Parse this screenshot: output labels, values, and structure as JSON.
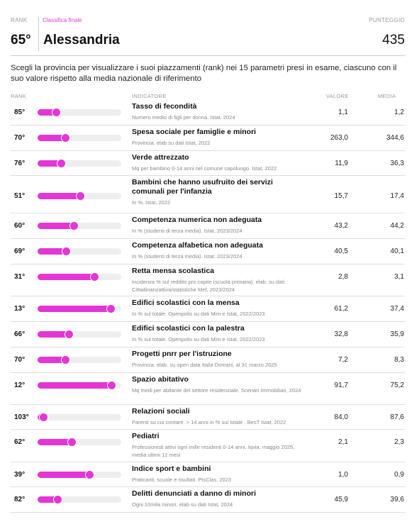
{
  "header": {
    "rank_label": "RANK",
    "section_label": "Classifica finale",
    "score_label": "PUNTEGGIO",
    "rank": "65°",
    "province": "Alessandria",
    "score": "435"
  },
  "intro": "Scegli la provincia per visualizzare i suoi piazzamenti (rank) nei 15 parametri presi in esame, ciascuno con il suo valore rispetto alla media nazionale di riferimento",
  "columns": {
    "rank": "RANK",
    "indicator": "INDICATORE",
    "value": "VALORE",
    "average": "MEDIA"
  },
  "accent_color": "#e535d4",
  "rows": [
    {
      "rank": "85°",
      "level": 0.22,
      "title": "Tasso di fecondità",
      "source": "Numero medio di figli per donna. Istat, 2024",
      "value": "1,1",
      "average": "1,2"
    },
    {
      "rank": "70°",
      "level": 0.33,
      "title": "Spesa sociale per famiglie e minori",
      "source": "Provincia. elab su dati Istat, 2022",
      "value": "263,0",
      "average": "344,6"
    },
    {
      "rank": "76°",
      "level": 0.28,
      "title": "Verde attrezzato",
      "source": "Mq per bambino 0-14 anni nel comune capoluogo. Istat, 2022",
      "value": "11,9",
      "average": "36,3"
    },
    {
      "rank": "51°",
      "level": 0.51,
      "title": "Bambini che hanno usufruito dei servizi comunali per l'infanzia",
      "source": "In %. Istat, 2022",
      "value": "15,7",
      "average": "17,4"
    },
    {
      "rank": "60°",
      "level": 0.43,
      "title": "Competenza numerica non adeguata",
      "source": "In % (studenti di terza media). Istat, 2023/2024",
      "value": "43,2",
      "average": "44,2"
    },
    {
      "rank": "69°",
      "level": 0.34,
      "title": "Competenza alfabetica non adeguata",
      "source": "In % (studenti di terza media). Istat, 2023/2024",
      "value": "40,5",
      "average": "40,1"
    },
    {
      "rank": "31°",
      "level": 0.68,
      "title": "Retta mensa scolastica",
      "source": "Incidenza % sul reddito pro capite (scuola primaria). elab. su dati Cittadinanzattiva/statistiche Mef, 2023/2024",
      "value": "2,8",
      "average": "3,1"
    },
    {
      "rank": "13°",
      "level": 0.87,
      "title": "Edifici scolastici con la mensa",
      "source": "In % sul totale. Openpolis su dati Mim e Istat, 2022/2023",
      "value": "61,2",
      "average": "37,4"
    },
    {
      "rank": "66°",
      "level": 0.37,
      "title": "Edifici scolastici con la palestra",
      "source": "In % sul totale. Openpolis su dati Mim e Istat, 2022/2023",
      "value": "32,8",
      "average": "35,9"
    },
    {
      "rank": "70°",
      "level": 0.33,
      "title": "Progetti pnrr per l'istruzione",
      "source": "Provincia. elab. su open data Italia Domani, al 31 marzo 2025",
      "value": "7,2",
      "average": "8,3"
    },
    {
      "rank": "12°",
      "level": 0.88,
      "title": "Spazio abitativo",
      "source": "Mq medi per abitante del settore residenziale. Scenari Immobiliari, 2024",
      "value": "91,7",
      "average": "75,2"
    },
    {
      "rank": "103°",
      "level": 0.05,
      "title": "Relazioni sociali",
      "source": "Parenti su cui contare. > 14 anni in % sul totale . BesT Istat, 2022",
      "value": "84,0",
      "average": "87,6"
    },
    {
      "rank": "62°",
      "level": 0.41,
      "title": "Pediatri",
      "source": "Professionisti attivi ogni mille residenti 0-14 anni. Iqvia, maggio 2025, media ultimi 12 mesi",
      "value": "2,1",
      "average": "2,3"
    },
    {
      "rank": "39°",
      "level": 0.62,
      "title": "Indice sport e bambini",
      "source": "Praticanti, scuole e risultati. PtsClas, 2023",
      "value": "1,0",
      "average": "0,9"
    },
    {
      "rank": "82°",
      "level": 0.24,
      "title": "Delitti denunciati a danno di minori",
      "source": "Ogni 10mila minori. elab su dati Istat, 2024",
      "value": "45,9",
      "average": "39,6"
    }
  ]
}
